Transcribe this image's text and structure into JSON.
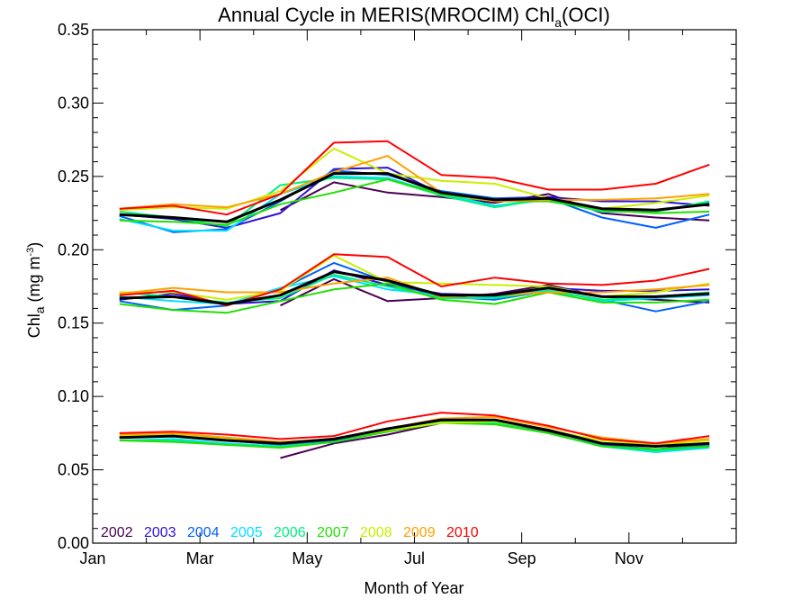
{
  "chart_data": {
    "type": "line",
    "title": {
      "text": "Annual Cycle in MERIS(MROCIM) Chl",
      "sub": "a",
      "suffix": "(OCI)"
    },
    "xlabel": "Month of Year",
    "ylabel": {
      "text": "Chl",
      "sub": "a",
      "unit": " (mg m",
      "sup": "-3",
      "close": ")"
    },
    "xlim": [
      0,
      12
    ],
    "ylim": [
      0,
      0.35
    ],
    "x_ticks": [
      {
        "value": 0,
        "label": "Jan"
      },
      {
        "value": 2,
        "label": "Mar"
      },
      {
        "value": 4,
        "label": "May"
      },
      {
        "value": 6,
        "label": "Jul"
      },
      {
        "value": 8,
        "label": "Sep"
      },
      {
        "value": 10,
        "label": "Nov"
      }
    ],
    "y_ticks": [
      "0.00",
      "0.05",
      "0.10",
      "0.15",
      "0.20",
      "0.25",
      "0.30",
      "0.35"
    ],
    "y_tick_values": [
      0,
      0.05,
      0.1,
      0.15,
      0.2,
      0.25,
      0.3,
      0.35
    ],
    "legend_placement": "bottom-left",
    "mean_color": "#000000",
    "years": [
      {
        "name": "2002",
        "color": "#4b0055"
      },
      {
        "name": "2003",
        "color": "#3010d8"
      },
      {
        "name": "2004",
        "color": "#0060ff"
      },
      {
        "name": "2005",
        "color": "#00e0ff"
      },
      {
        "name": "2006",
        "color": "#00f080"
      },
      {
        "name": "2007",
        "color": "#20e000"
      },
      {
        "name": "2008",
        "color": "#c8f000"
      },
      {
        "name": "2009",
        "color": "#ffa000"
      },
      {
        "name": "2010",
        "color": "#ff0000"
      }
    ],
    "x": [
      0.5,
      1.5,
      2.5,
      3.5,
      4.5,
      5.5,
      6.5,
      7.5,
      8.5,
      9.5,
      10.5,
      11.5
    ],
    "groups": [
      {
        "name": "upper",
        "series": [
          {
            "year": "2002",
            "values": [
              null,
              null,
              null,
              0.227,
              0.246,
              0.239,
              0.236,
              0.232,
              0.238,
              0.225,
              0.222,
              0.22
            ]
          },
          {
            "year": "2003",
            "values": [
              0.224,
              0.221,
              0.215,
              0.225,
              0.255,
              0.256,
              0.238,
              0.235,
              0.236,
              0.233,
              0.233,
              0.23
            ]
          },
          {
            "year": "2004",
            "values": [
              0.223,
              0.212,
              0.214,
              0.233,
              0.254,
              0.251,
              0.24,
              0.235,
              0.235,
              0.222,
              0.215,
              0.224
            ]
          },
          {
            "year": "2005",
            "values": [
              0.221,
              0.213,
              0.213,
              0.238,
              0.25,
              0.249,
              0.238,
              0.23,
              0.234,
              0.226,
              0.226,
              0.232
            ]
          },
          {
            "year": "2006",
            "values": [
              0.226,
              0.222,
              0.216,
              0.244,
              0.249,
              0.248,
              0.237,
              0.229,
              0.235,
              0.226,
              0.226,
              0.233
            ]
          },
          {
            "year": "2007",
            "values": [
              0.22,
              0.219,
              0.217,
              0.231,
              0.239,
              0.248,
              0.238,
              0.233,
              0.233,
              0.227,
              0.225,
              0.226
            ]
          },
          {
            "year": "2008",
            "values": [
              0.227,
              0.229,
              0.228,
              0.24,
              0.269,
              0.252,
              0.247,
              0.245,
              0.235,
              0.228,
              0.232,
              0.237
            ]
          },
          {
            "year": "2009",
            "values": [
              0.228,
              0.231,
              0.229,
              0.238,
              0.253,
              0.264,
              0.239,
              0.233,
              0.234,
              0.234,
              0.235,
              0.238
            ]
          },
          {
            "year": "2010",
            "values": [
              0.228,
              0.23,
              0.224,
              0.238,
              0.273,
              0.274,
              0.251,
              0.249,
              0.241,
              0.241,
              0.245,
              0.258
            ]
          }
        ],
        "mean": [
          0.224,
          0.222,
          0.219,
          0.234,
          0.252,
          0.252,
          0.239,
          0.234,
          0.235,
          0.228,
          0.227,
          0.231
        ]
      },
      {
        "name": "middle",
        "series": [
          {
            "year": "2002",
            "values": [
              null,
              null,
              null,
              0.162,
              0.18,
              0.165,
              0.167,
              0.17,
              0.176,
              0.168,
              0.166,
              0.164
            ]
          },
          {
            "year": "2003",
            "values": [
              0.166,
              0.17,
              0.163,
              0.165,
              0.186,
              0.176,
              0.17,
              0.169,
              0.174,
              0.172,
              0.172,
              0.173
            ]
          },
          {
            "year": "2004",
            "values": [
              0.165,
              0.159,
              0.162,
              0.173,
              0.191,
              0.178,
              0.168,
              0.166,
              0.172,
              0.166,
              0.158,
              0.165
            ]
          },
          {
            "year": "2005",
            "values": [
              0.168,
              0.165,
              0.163,
              0.174,
              0.182,
              0.173,
              0.169,
              0.168,
              0.173,
              0.165,
              0.167,
              0.169
            ]
          },
          {
            "year": "2006",
            "values": [
              0.171,
              0.168,
              0.164,
              0.167,
              0.183,
              0.175,
              0.167,
              0.167,
              0.172,
              0.166,
              0.168,
              0.171
            ]
          },
          {
            "year": "2007",
            "values": [
              0.163,
              0.159,
              0.157,
              0.165,
              0.173,
              0.177,
              0.166,
              0.163,
              0.171,
              0.164,
              0.164,
              0.166
            ]
          },
          {
            "year": "2008",
            "values": [
              0.171,
              0.171,
              0.166,
              0.172,
              0.196,
              0.178,
              0.177,
              0.176,
              0.175,
              0.168,
              0.171,
              0.177
            ]
          },
          {
            "year": "2009",
            "values": [
              0.17,
              0.174,
              0.171,
              0.171,
              0.177,
              0.181,
              0.168,
              0.169,
              0.171,
              0.171,
              0.173,
              0.176
            ]
          },
          {
            "year": "2010",
            "values": [
              0.169,
              0.172,
              0.162,
              0.173,
              0.197,
              0.195,
              0.175,
              0.181,
              0.177,
              0.176,
              0.179,
              0.187
            ]
          }
        ],
        "mean": [
          0.167,
          0.168,
          0.163,
          0.169,
          0.185,
          0.179,
          0.169,
          0.169,
          0.174,
          0.168,
          0.168,
          0.17
        ]
      },
      {
        "name": "lower",
        "series": [
          {
            "year": "2002",
            "values": [
              null,
              null,
              null,
              0.058,
              0.068,
              0.074,
              0.082,
              0.082,
              0.076,
              0.068,
              0.066,
              0.066
            ]
          },
          {
            "year": "2003",
            "values": [
              0.072,
              0.073,
              0.07,
              0.068,
              0.07,
              0.077,
              0.084,
              0.084,
              0.077,
              0.068,
              0.066,
              0.068
            ]
          },
          {
            "year": "2004",
            "values": [
              0.072,
              0.073,
              0.07,
              0.067,
              0.07,
              0.077,
              0.084,
              0.084,
              0.077,
              0.067,
              0.064,
              0.067
            ]
          },
          {
            "year": "2005",
            "values": [
              0.07,
              0.071,
              0.068,
              0.066,
              0.069,
              0.076,
              0.083,
              0.082,
              0.075,
              0.066,
              0.062,
              0.065
            ]
          },
          {
            "year": "2006",
            "values": [
              0.07,
              0.07,
              0.067,
              0.066,
              0.069,
              0.076,
              0.083,
              0.082,
              0.075,
              0.066,
              0.063,
              0.066
            ]
          },
          {
            "year": "2007",
            "values": [
              0.07,
              0.069,
              0.067,
              0.065,
              0.069,
              0.076,
              0.082,
              0.081,
              0.075,
              0.066,
              0.064,
              0.066
            ]
          },
          {
            "year": "2008",
            "values": [
              0.073,
              0.074,
              0.071,
              0.068,
              0.071,
              0.077,
              0.082,
              0.083,
              0.077,
              0.07,
              0.067,
              0.07
            ]
          },
          {
            "year": "2009",
            "values": [
              0.074,
              0.075,
              0.072,
              0.069,
              0.071,
              0.078,
              0.085,
              0.086,
              0.079,
              0.072,
              0.068,
              0.071
            ]
          },
          {
            "year": "2010",
            "values": [
              0.075,
              0.076,
              0.074,
              0.071,
              0.073,
              0.083,
              0.089,
              0.087,
              0.08,
              0.071,
              0.068,
              0.073
            ]
          }
        ],
        "mean": [
          0.072,
          0.073,
          0.07,
          0.068,
          0.071,
          0.078,
          0.084,
          0.084,
          0.077,
          0.068,
          0.066,
          0.068
        ]
      }
    ]
  }
}
